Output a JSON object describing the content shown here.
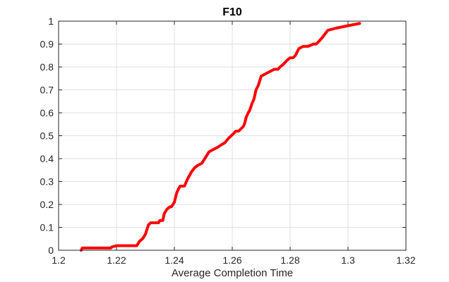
{
  "chart_data": {
    "type": "line",
    "title": "F10",
    "xlabel": "Average Completion Time",
    "ylabel": "",
    "xlim": [
      1.2,
      1.32
    ],
    "ylim": [
      0,
      1
    ],
    "x_ticks": [
      "1.2",
      "1.22",
      "1.24",
      "1.26",
      "1.28",
      "1.3",
      "1.32"
    ],
    "y_ticks": [
      "0",
      "0.1",
      "0.2",
      "0.3",
      "0.4",
      "0.5",
      "0.6",
      "0.7",
      "0.8",
      "0.9",
      "1"
    ],
    "grid": true,
    "line_color": "#ff0000",
    "series": [
      {
        "x": [
          1.2078,
          1.208,
          1.2082,
          1.215,
          1.218,
          1.2185,
          1.22,
          1.227,
          1.2275,
          1.228,
          1.229,
          1.23,
          1.2305,
          1.231,
          1.2318,
          1.2325,
          1.2345,
          1.235,
          1.236,
          1.2365,
          1.2375,
          1.2385,
          1.239,
          1.24,
          1.2408,
          1.2415,
          1.242,
          1.2435,
          1.2445,
          1.2458,
          1.247,
          1.248,
          1.2495,
          1.2505,
          1.252,
          1.2535,
          1.255,
          1.2562,
          1.2575,
          1.2588,
          1.2605,
          1.2612,
          1.2622,
          1.263,
          1.2638,
          1.2642,
          1.2648,
          1.2655,
          1.266,
          1.2668,
          1.2675,
          1.2682,
          1.269,
          1.27,
          1.2715,
          1.273,
          1.2745,
          1.2758,
          1.2765,
          1.2775,
          1.279,
          1.28,
          1.281,
          1.2818,
          1.283,
          1.2845,
          1.2862,
          1.288,
          1.289,
          1.2898,
          1.2912,
          1.293,
          1.296,
          1.3,
          1.304
        ],
        "y": [
          0,
          0.005,
          0.01,
          0.01,
          0.01,
          0.015,
          0.02,
          0.02,
          0.03,
          0.04,
          0.05,
          0.07,
          0.09,
          0.11,
          0.12,
          0.12,
          0.12,
          0.13,
          0.13,
          0.16,
          0.18,
          0.19,
          0.19,
          0.21,
          0.25,
          0.27,
          0.28,
          0.28,
          0.31,
          0.34,
          0.36,
          0.37,
          0.38,
          0.4,
          0.43,
          0.44,
          0.45,
          0.46,
          0.47,
          0.49,
          0.51,
          0.52,
          0.52,
          0.53,
          0.54,
          0.55,
          0.58,
          0.6,
          0.61,
          0.64,
          0.66,
          0.7,
          0.72,
          0.76,
          0.77,
          0.78,
          0.79,
          0.79,
          0.8,
          0.81,
          0.83,
          0.84,
          0.84,
          0.85,
          0.88,
          0.89,
          0.89,
          0.9,
          0.9,
          0.91,
          0.93,
          0.96,
          0.97,
          0.98,
          0.99
        ]
      }
    ]
  }
}
